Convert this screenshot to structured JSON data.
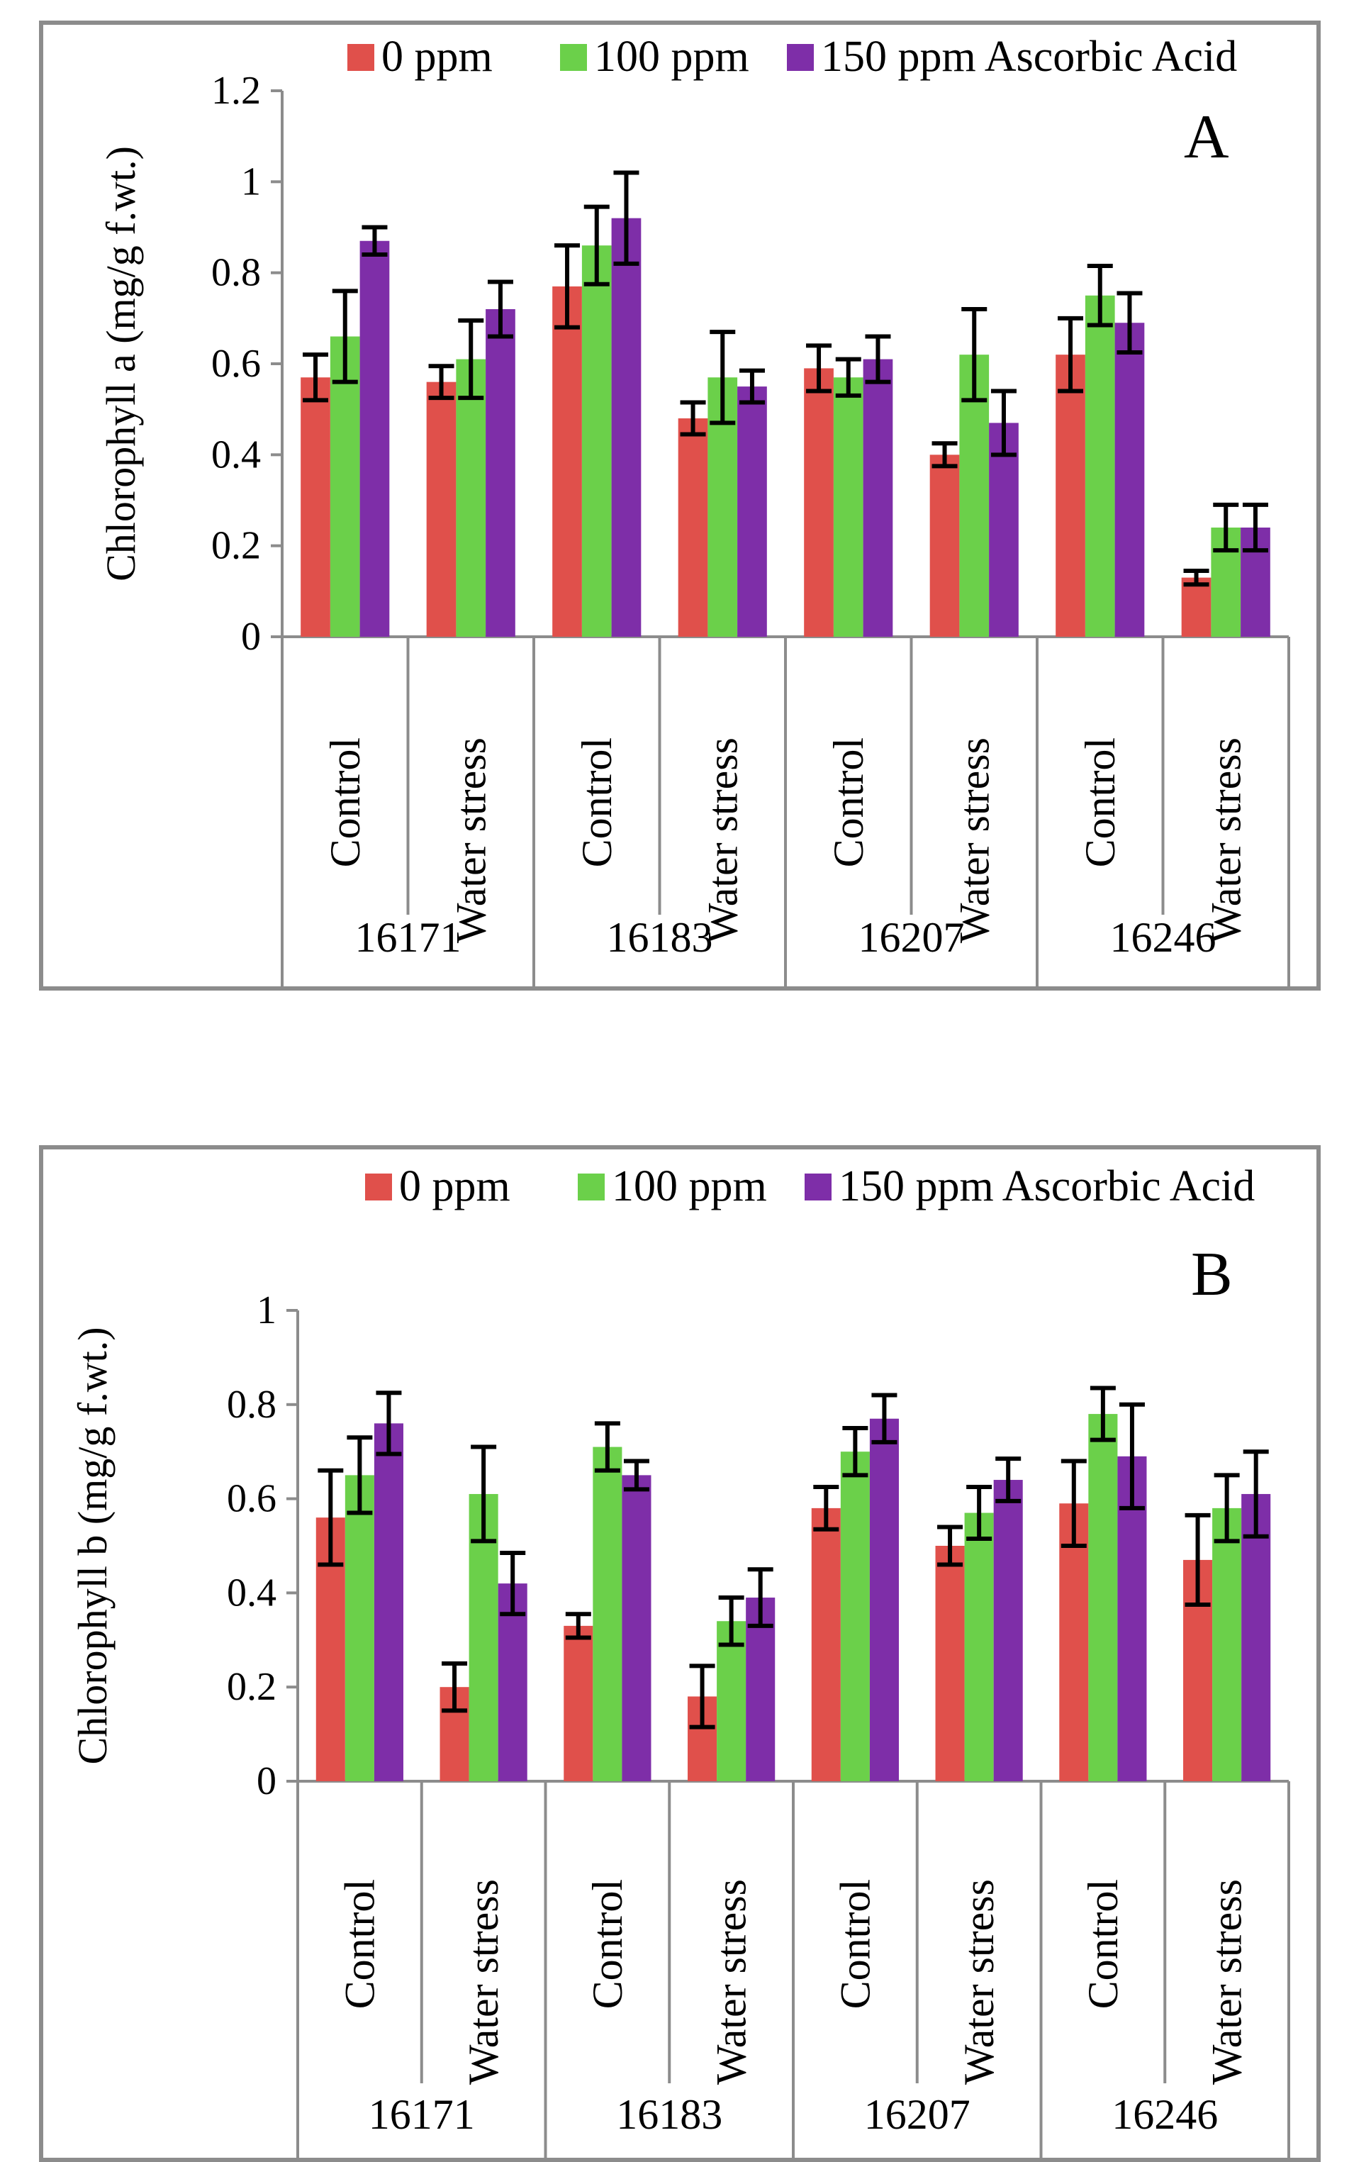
{
  "chart_data": [
    {
      "id": "A",
      "type": "bar",
      "panel_label": "A",
      "ylabel": "Chlorophyll a (mg/g f.wt.)",
      "ylim": [
        0,
        1.2
      ],
      "yticks": [
        "0",
        "0.2",
        "0.4",
        "0.6",
        "0.8",
        "1",
        "1.2"
      ],
      "legend_position": "top",
      "groups": [
        "16171",
        "16183",
        "16207",
        "16246"
      ],
      "categories": [
        "Control",
        "Water stress",
        "Control",
        "Water stress",
        "Control",
        "Water stress",
        "Control",
        "Water stress"
      ],
      "series": [
        {
          "name": "0 ppm",
          "color": "#E0504B",
          "values": [
            0.57,
            0.56,
            0.77,
            0.48,
            0.59,
            0.4,
            0.62,
            0.13
          ],
          "errors": [
            0.05,
            0.035,
            0.09,
            0.035,
            0.05,
            0.025,
            0.08,
            0.015
          ]
        },
        {
          "name": "100 ppm",
          "color": "#6BD04A",
          "values": [
            0.66,
            0.61,
            0.86,
            0.57,
            0.57,
            0.62,
            0.75,
            0.24
          ],
          "errors": [
            0.1,
            0.085,
            0.085,
            0.1,
            0.04,
            0.1,
            0.065,
            0.05
          ]
        },
        {
          "name": "150 ppm Ascorbic Acid",
          "color": "#7E2EA8",
          "values": [
            0.87,
            0.72,
            0.92,
            0.55,
            0.61,
            0.47,
            0.69,
            0.24
          ],
          "errors": [
            0.03,
            0.06,
            0.1,
            0.035,
            0.05,
            0.07,
            0.065,
            0.05
          ]
        }
      ]
    },
    {
      "id": "B",
      "type": "bar",
      "panel_label": "B",
      "ylabel": "Chlorophyll b (mg/g f.wt.)",
      "ylim": [
        0,
        1
      ],
      "yticks": [
        "0",
        "0.2",
        "0.4",
        "0.6",
        "0.8",
        "1"
      ],
      "legend_position": "top",
      "groups": [
        "16171",
        "16183",
        "16207",
        "16246"
      ],
      "categories": [
        "Control",
        "Water stress",
        "Control",
        "Water stress",
        "Control",
        "Water stress",
        "Control",
        "Water stress"
      ],
      "series": [
        {
          "name": "0 ppm",
          "color": "#E0504B",
          "values": [
            0.56,
            0.2,
            0.33,
            0.18,
            0.58,
            0.5,
            0.59,
            0.47
          ],
          "errors": [
            0.1,
            0.05,
            0.025,
            0.065,
            0.045,
            0.04,
            0.09,
            0.095
          ]
        },
        {
          "name": "100 ppm",
          "color": "#6BD04A",
          "values": [
            0.65,
            0.61,
            0.71,
            0.34,
            0.7,
            0.57,
            0.78,
            0.58
          ],
          "errors": [
            0.08,
            0.1,
            0.05,
            0.05,
            0.05,
            0.055,
            0.055,
            0.07
          ]
        },
        {
          "name": "150 ppm Ascorbic Acid",
          "color": "#7E2EA8",
          "values": [
            0.76,
            0.42,
            0.65,
            0.39,
            0.77,
            0.64,
            0.69,
            0.61
          ],
          "errors": [
            0.065,
            0.065,
            0.03,
            0.06,
            0.05,
            0.045,
            0.11,
            0.09
          ]
        }
      ]
    }
  ]
}
